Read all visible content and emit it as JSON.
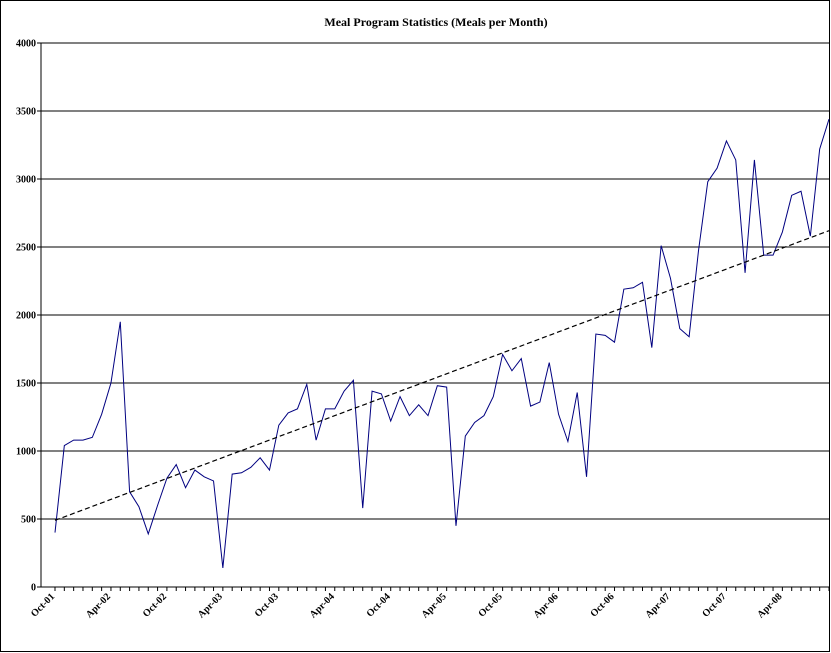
{
  "chart_data": {
    "type": "line",
    "title": "Meal Program Statistics (Meals per Month)",
    "categories": [
      "Oct-01",
      null,
      null,
      null,
      null,
      null,
      "Apr-02",
      null,
      null,
      null,
      null,
      null,
      "Oct-02",
      null,
      null,
      null,
      null,
      null,
      "Apr-03",
      null,
      null,
      null,
      null,
      null,
      "Oct-03",
      null,
      null,
      null,
      null,
      null,
      "Apr-04",
      null,
      null,
      null,
      null,
      null,
      "Oct-04",
      null,
      null,
      null,
      null,
      null,
      "Apr-05",
      null,
      null,
      null,
      null,
      null,
      "Oct-05",
      null,
      null,
      null,
      null,
      null,
      "Apr-06",
      null,
      null,
      null,
      null,
      null,
      "Oct-06",
      null,
      null,
      null,
      null,
      null,
      "Apr-07",
      null,
      null,
      null,
      null,
      null,
      "Oct-07",
      null,
      null,
      null,
      null,
      null,
      "Apr-08",
      null,
      null,
      null,
      null,
      null
    ],
    "series": [
      {
        "color": "#000080",
        "values": [
          400,
          1040,
          1080,
          1080,
          1100,
          1270,
          1500,
          1950,
          700,
          590,
          390,
          600,
          800,
          900,
          730,
          860,
          810,
          780,
          140,
          830,
          840,
          880,
          950,
          860,
          1190,
          1280,
          1310,
          1490,
          1080,
          1310,
          1310,
          1440,
          1520,
          580,
          1440,
          1420,
          1220,
          1400,
          1260,
          1340,
          1260,
          1480,
          1470,
          450,
          1110,
          1210,
          1260,
          1400,
          1710,
          1590,
          1680,
          1330,
          1360,
          1650,
          1270,
          1070,
          1430,
          810,
          1860,
          1850,
          1800,
          2190,
          2200,
          2240,
          1760,
          2510,
          2270,
          1900,
          1840,
          2470,
          2980,
          3080,
          3280,
          3140,
          2310,
          3140,
          2440,
          2440,
          2610,
          2880,
          2910,
          2580,
          3220,
          3440
        ]
      }
    ],
    "trend": {
      "color": "#000000",
      "values": [
        490,
        2620
      ]
    },
    "ylim": [
      0,
      4000
    ],
    "yticks": [
      0,
      500,
      1000,
      1500,
      2000,
      2500,
      3000,
      3500,
      4000
    ],
    "grid": true
  }
}
